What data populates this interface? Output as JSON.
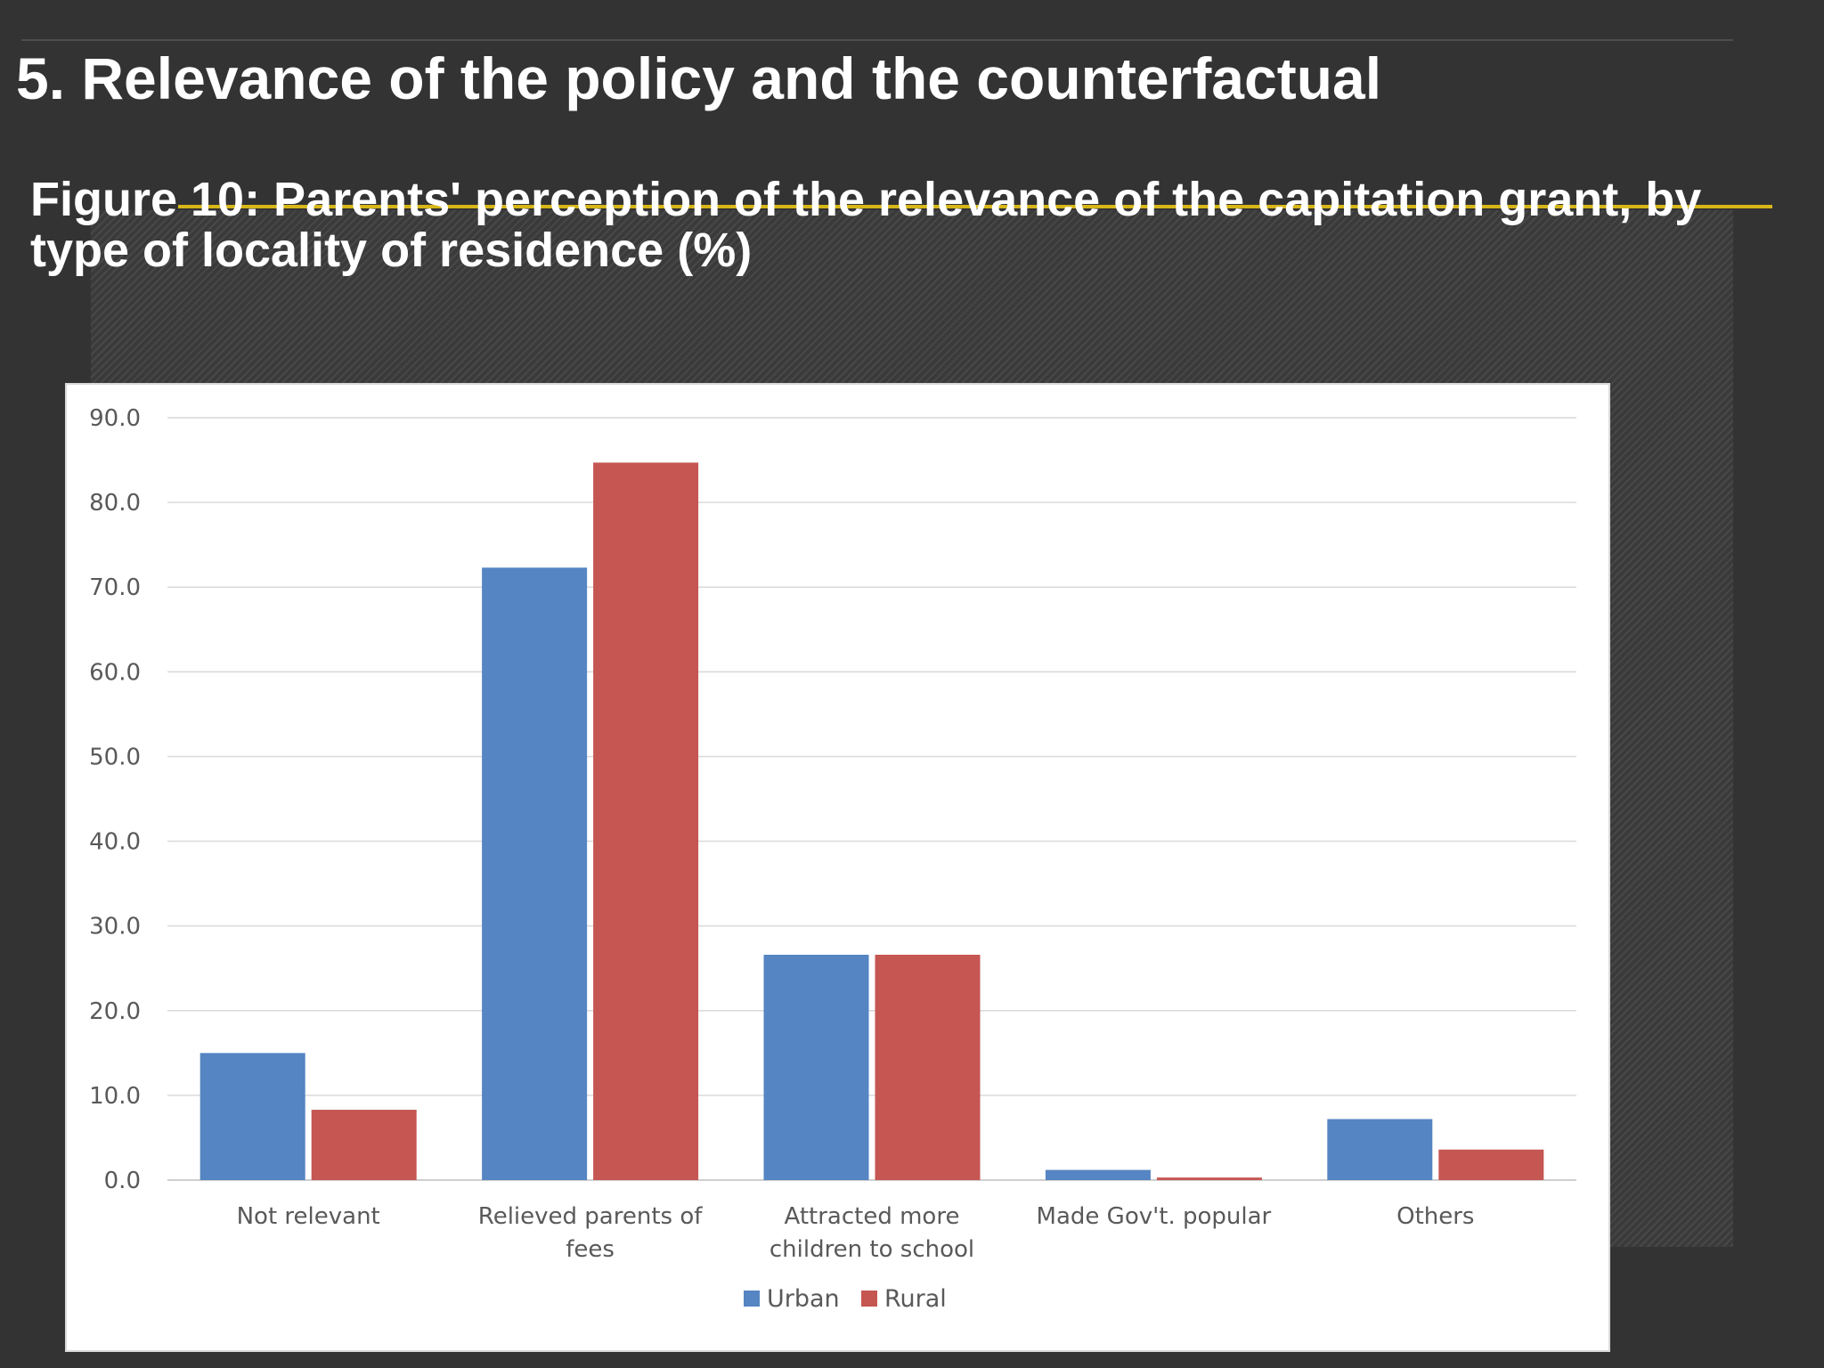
{
  "slide": {
    "title": "5. Relevance of the policy and the counterfactual",
    "figure_title": "Figure 10: Parents' perception of the relevance of the capitation grant, by type of locality of residence (%)"
  },
  "chart_data": {
    "type": "bar",
    "title": "",
    "xlabel": "",
    "ylabel": "",
    "categories": [
      [
        "Not relevant"
      ],
      [
        "Relieved parents of",
        "fees"
      ],
      [
        "Attracted more",
        "children to school"
      ],
      [
        "Made Gov't. popular"
      ],
      [
        "Others"
      ]
    ],
    "series": [
      {
        "name": "Urban",
        "color": "#5585C2",
        "values": [
          15.0,
          72.3,
          26.6,
          1.2,
          7.2
        ]
      },
      {
        "name": "Rural",
        "color": "#C55652",
        "values": [
          8.3,
          84.7,
          26.6,
          0.3,
          3.6
        ]
      }
    ],
    "ylim": [
      0,
      90
    ],
    "yticks": [
      "0.0",
      "10.0",
      "20.0",
      "30.0",
      "40.0",
      "50.0",
      "60.0",
      "70.0",
      "80.0",
      "90.0"
    ],
    "grid": true,
    "legend": "bottom"
  }
}
